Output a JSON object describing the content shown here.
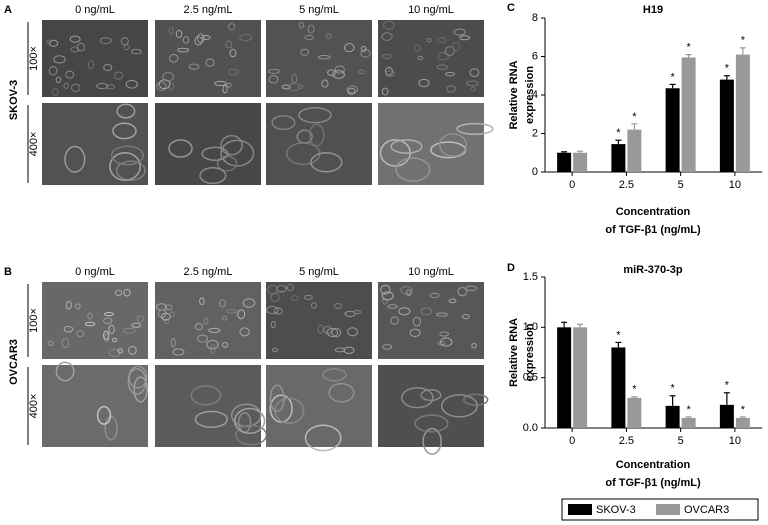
{
  "panels": [
    {
      "label": "A",
      "cell_line": "SKOV-3",
      "columns": [
        "0 ng/mL",
        "2.5 ng/mL",
        "5 ng/mL",
        "10 ng/mL"
      ],
      "rows": [
        "100×",
        "400×"
      ]
    },
    {
      "label": "B",
      "cell_line": "OVCAR3",
      "columns": [
        "0 ng/mL",
        "2.5 ng/mL",
        "5 ng/mL",
        "10 ng/mL"
      ],
      "rows": [
        "100×",
        "400×"
      ]
    }
  ],
  "legend": [
    {
      "name": "SKOV-3",
      "color": "#000000"
    },
    {
      "name": "OVCAR3",
      "color": "#999999"
    }
  ],
  "chart_data": [
    {
      "type": "bar",
      "panel_label": "C",
      "title": "H19",
      "y_label": [
        "Relative RNA",
        "expression"
      ],
      "x_label": [
        "Concentration",
        "of TGF-β1 (ng/mL)"
      ],
      "categories": [
        "0",
        "2.5",
        "5",
        "10"
      ],
      "ylim": [
        0,
        8
      ],
      "yticks": [
        0,
        2,
        4,
        6,
        8
      ],
      "series": [
        {
          "color": "#000000",
          "values": [
            1.0,
            1.45,
            4.35,
            4.8
          ],
          "errors": [
            0.05,
            0.2,
            0.2,
            0.2
          ],
          "significance": [
            null,
            "*",
            "*",
            "*"
          ]
        },
        {
          "color": "#999999",
          "values": [
            1.0,
            2.2,
            5.95,
            6.1
          ],
          "errors": [
            0.08,
            0.3,
            0.15,
            0.35
          ],
          "significance": [
            null,
            "*",
            "*",
            "*"
          ]
        }
      ]
    },
    {
      "type": "bar",
      "panel_label": "D",
      "title": "miR-370-3p",
      "y_label": [
        "Relative RNA",
        "expression"
      ],
      "x_label": [
        "Concentration",
        "of TGF-β1 (ng/mL)"
      ],
      "categories": [
        "0",
        "2.5",
        "5",
        "10"
      ],
      "ylim": [
        0,
        1.5
      ],
      "yticks": [
        {
          "value": 0,
          "label": "0.0"
        },
        0.5,
        {
          "value": 1,
          "label": "1.0"
        },
        1.5
      ],
      "series": [
        {
          "color": "#000000",
          "values": [
            1.0,
            0.8,
            0.22,
            0.23
          ],
          "errors": [
            0.05,
            0.05,
            0.1,
            0.12
          ],
          "significance": [
            null,
            "*",
            "*",
            "*"
          ]
        },
        {
          "color": "#999999",
          "values": [
            1.0,
            0.3,
            0.1,
            0.1
          ],
          "errors": [
            0.03,
            0.01,
            0.01,
            0.01
          ],
          "significance": [
            null,
            "*",
            "*",
            "*"
          ]
        }
      ]
    }
  ]
}
